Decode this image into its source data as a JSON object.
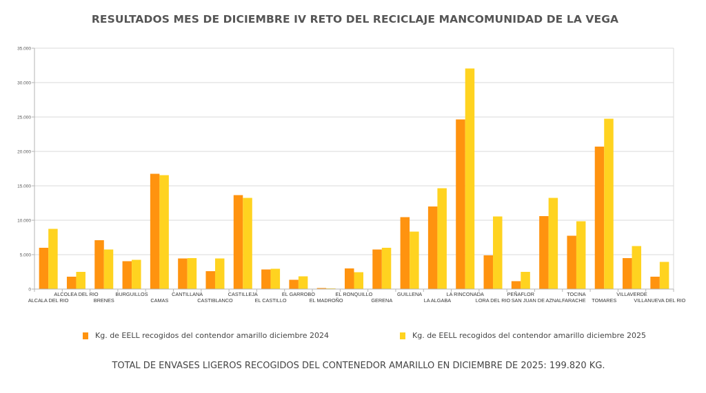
{
  "colors": {
    "series_2024": "#FF930F",
    "series_2025": "#FFD320",
    "grid": "#D9D9D9",
    "axis": "#B3B3B3"
  },
  "title": "RESULTADOS MES DE DICIEMBRE IV RETO DEL RECICLAJE MANCOMUNIDAD DE LA VEGA",
  "legend": [
    {
      "label": "Kg. de EELL recogidos del contendor amarillo diciembre 2024"
    },
    {
      "label": "Kg. de EELL recogidos del contendor amarillo diciembre 2025"
    }
  ],
  "footer": "TOTAL DE ENVASES LIGEROS RECOGIDOS DEL CONTENEDOR AMARILLO EN DICIEMBRE DE 2025: 199.820 KG.",
  "chart_data": {
    "type": "bar",
    "title": "RESULTADOS MES DE DICIEMBRE IV RETO DEL RECICLAJE MANCOMUNIDAD DE LA VEGA",
    "xlabel": "",
    "ylabel": "",
    "ylim": [
      0,
      35000
    ],
    "yticks": [
      0,
      5000,
      10000,
      15000,
      20000,
      25000,
      30000,
      35000
    ],
    "ytick_labels": [
      "0",
      "5.000",
      "10.000",
      "15.000",
      "20.000",
      "25.000",
      "30.000",
      "35.000"
    ],
    "grid": true,
    "legend_position": "bottom",
    "categories": [
      "ALCALA DEL RIO",
      "ALCOLEA DEL RIO",
      "BRENES",
      "BURGUILLOS",
      "CAMAS",
      "CANTILLANA",
      "CASTIBLANCO",
      "CASTILLEJA",
      "EL CASTILLO",
      "EL GARROBO",
      "EL MADROÑO",
      "EL RONQUILLO",
      "GERENA",
      "GUILLENA",
      "LA ALGABA",
      "LA RINCONADA",
      "LORA DEL RIO",
      "PEÑAFLOR",
      "SAN JUAN DE AZNALFARACHE",
      "TOCINA",
      "TOMARES",
      "VILLAVERDE",
      "VILLANUEVA DEL RIO"
    ],
    "series": [
      {
        "name": "Kg. de EELL recogidos del contendor amarillo diciembre 2024",
        "values": [
          6000,
          1800,
          7100,
          4050,
          16750,
          4450,
          2600,
          13650,
          2850,
          1350,
          150,
          3000,
          5750,
          10450,
          12000,
          24650,
          4900,
          1150,
          10600,
          7750,
          20700,
          4500,
          1800
        ]
      },
      {
        "name": "Kg. de EELL recogidos del contendor amarillo diciembre 2025",
        "values": [
          8750,
          2500,
          5750,
          4250,
          16550,
          4500,
          4450,
          13250,
          2950,
          1850,
          100,
          2450,
          6000,
          8350,
          14650,
          32050,
          10550,
          2500,
          13250,
          9850,
          24750,
          6250,
          3950
        ]
      }
    ]
  }
}
